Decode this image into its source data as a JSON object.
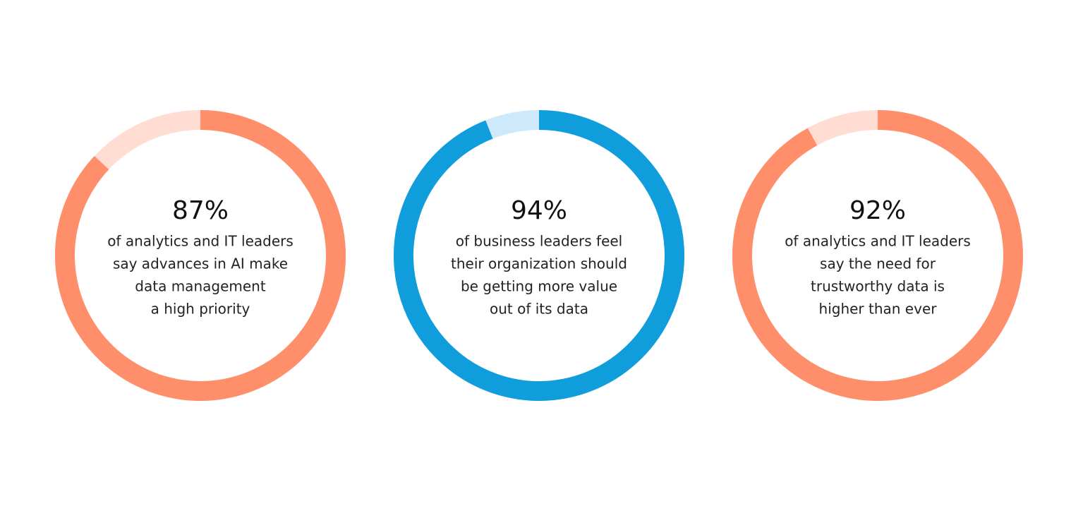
{
  "chart_data": [
    {
      "type": "donut",
      "values": [
        87
      ],
      "value_labels": [
        "87%"
      ],
      "color": "#ff8f6b",
      "track_color": "#ffddd2",
      "text_lines": [
        "of analytics and IT leaders",
        "say advances in AI make",
        "data management",
        "a high priority"
      ]
    },
    {
      "type": "donut",
      "values": [
        94
      ],
      "value_labels": [
        "94%"
      ],
      "color": "#0f9ddb",
      "track_color": "#cde9fb",
      "text_lines": [
        "of business leaders feel",
        "their organization should",
        "be getting more value",
        "out of its data"
      ]
    },
    {
      "type": "donut",
      "values": [
        92
      ],
      "value_labels": [
        "92%"
      ],
      "color": "#ff8f6b",
      "track_color": "#ffddd2",
      "text_lines": [
        "of analytics and IT leaders",
        "say the need for",
        "trustworthy data is",
        "higher than ever"
      ]
    }
  ]
}
